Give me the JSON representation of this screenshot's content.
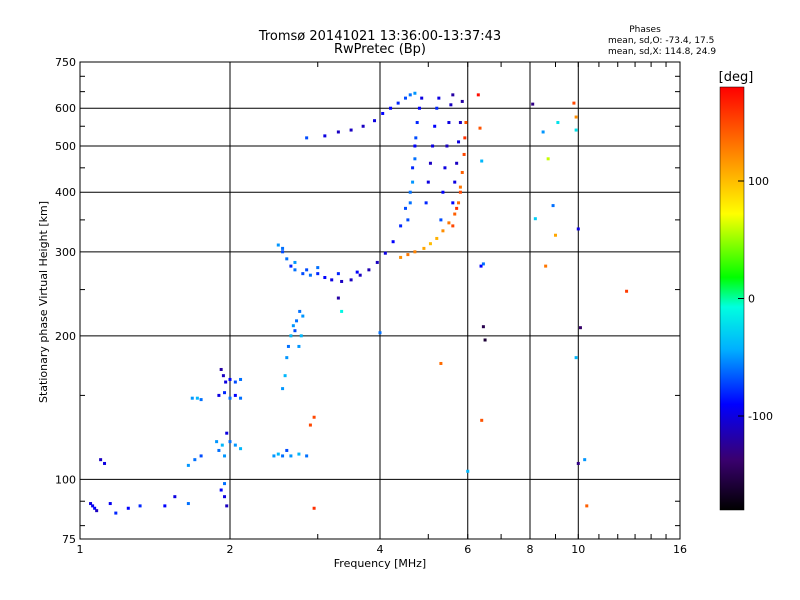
{
  "chart_data": {
    "type": "scatter",
    "title": "Tromsø 20141021 13:36:00-13:37:43",
    "subtitle": "RwPretec (Bp)",
    "xlabel": "Frequency [MHz]",
    "ylabel": "Stationary phase Virtual Height [km]",
    "x_scale": "log",
    "y_scale": "log",
    "xlim": [
      1,
      16
    ],
    "ylim": [
      75,
      750
    ],
    "x_ticks": [
      1,
      2,
      4,
      6,
      8,
      10,
      16
    ],
    "y_ticks": [
      75,
      100,
      200,
      300,
      400,
      500,
      600,
      750
    ],
    "x_gridlines": [
      2,
      4,
      6,
      8,
      10
    ],
    "y_gridlines": [
      100,
      200,
      300,
      400,
      500,
      600
    ],
    "grid": true,
    "legend": {
      "title": "Phases",
      "line1": "mean, sd,O: -73.4, 17.5",
      "line2": "mean, sd,X: 114.8, 24.9"
    },
    "colorbar": {
      "label": "[deg]",
      "ticks": [
        100,
        0,
        -100
      ],
      "range": [
        -180,
        180
      ],
      "colors": [
        "#000000",
        "#3a0070",
        "#0000ff",
        "#00b0ff",
        "#00ffe0",
        "#00ff00",
        "#ffff00",
        "#ff8000",
        "#ff0000"
      ]
    },
    "color_encoding": "phase (deg)",
    "series": [
      {
        "points": [
          [
            1.05,
            89,
            -100
          ],
          [
            1.06,
            88,
            -95
          ],
          [
            1.07,
            87,
            -90
          ],
          [
            1.08,
            86,
            -110
          ],
          [
            1.1,
            110,
            -110
          ],
          [
            1.12,
            108,
            -100
          ],
          [
            1.15,
            89,
            -95
          ],
          [
            1.18,
            85,
            -80
          ],
          [
            1.25,
            87,
            -90
          ],
          [
            1.32,
            88,
            -80
          ],
          [
            1.48,
            88,
            -90
          ],
          [
            1.55,
            92,
            -100
          ],
          [
            1.65,
            89,
            -60
          ],
          [
            1.68,
            148,
            -50
          ],
          [
            1.72,
            148,
            -40
          ],
          [
            1.75,
            147,
            -60
          ],
          [
            1.65,
            107,
            -50
          ],
          [
            1.7,
            110,
            -60
          ],
          [
            1.75,
            112,
            -70
          ]
        ]
      },
      {
        "points": [
          [
            1.88,
            120,
            -50
          ],
          [
            1.9,
            115,
            -60
          ],
          [
            1.93,
            118,
            -40
          ],
          [
            1.95,
            112,
            -50
          ],
          [
            1.97,
            125,
            -100
          ],
          [
            2.0,
            120,
            -60
          ],
          [
            2.05,
            118,
            -50
          ],
          [
            2.1,
            116,
            -40
          ],
          [
            1.9,
            150,
            -100
          ],
          [
            1.95,
            152,
            -80
          ],
          [
            2.0,
            148,
            -60
          ],
          [
            2.05,
            150,
            -90
          ],
          [
            2.1,
            148,
            -60
          ],
          [
            1.92,
            170,
            -120
          ],
          [
            1.94,
            165,
            -110
          ],
          [
            1.96,
            160,
            -100
          ],
          [
            2.0,
            162,
            -90
          ],
          [
            2.05,
            160,
            -70
          ],
          [
            2.1,
            162,
            -60
          ],
          [
            1.92,
            95,
            -90
          ],
          [
            1.95,
            92,
            -100
          ],
          [
            1.97,
            88,
            -110
          ],
          [
            1.95,
            98,
            -60
          ]
        ]
      },
      {
        "points": [
          [
            2.45,
            112,
            -50
          ],
          [
            2.5,
            113,
            -40
          ],
          [
            2.55,
            112,
            -60
          ],
          [
            2.6,
            115,
            -70
          ],
          [
            2.65,
            112,
            -50
          ],
          [
            2.75,
            113,
            -40
          ],
          [
            2.85,
            112,
            -60
          ],
          [
            2.55,
            155,
            -50
          ],
          [
            2.58,
            165,
            -40
          ],
          [
            2.6,
            180,
            -50
          ],
          [
            2.62,
            190,
            -60
          ],
          [
            2.65,
            200,
            -40
          ],
          [
            2.68,
            210,
            -50
          ],
          [
            2.7,
            205,
            -70
          ],
          [
            2.72,
            215,
            -60
          ],
          [
            2.75,
            190,
            -50
          ],
          [
            2.78,
            200,
            -40
          ],
          [
            2.8,
            220,
            -50
          ],
          [
            2.76,
            225,
            -60
          ]
        ]
      },
      {
        "points": [
          [
            2.5,
            310,
            -50
          ],
          [
            2.55,
            300,
            -70
          ],
          [
            2.6,
            290,
            -60
          ],
          [
            2.65,
            280,
            -80
          ],
          [
            2.7,
            275,
            -60
          ],
          [
            2.8,
            270,
            -70
          ],
          [
            2.9,
            268,
            -60
          ],
          [
            3.0,
            270,
            -80
          ],
          [
            3.1,
            265,
            -90
          ],
          [
            3.2,
            262,
            -100
          ],
          [
            3.35,
            260,
            -110
          ],
          [
            3.5,
            262,
            -110
          ],
          [
            3.65,
            268,
            -110
          ],
          [
            3.8,
            275,
            -115
          ],
          [
            3.95,
            285,
            -110
          ],
          [
            4.1,
            298,
            -100
          ],
          [
            4.25,
            315,
            -90
          ],
          [
            4.4,
            340,
            -80
          ],
          [
            4.5,
            370,
            -70
          ],
          [
            2.55,
            305,
            -60
          ],
          [
            2.7,
            285,
            -50
          ],
          [
            2.85,
            275,
            -70
          ],
          [
            3.0,
            278,
            -60
          ],
          [
            3.3,
            270,
            -80
          ],
          [
            3.6,
            272,
            -90
          ]
        ]
      },
      {
        "points": [
          [
            2.85,
            520,
            -70
          ],
          [
            3.1,
            525,
            -100
          ],
          [
            3.3,
            535,
            -110
          ],
          [
            3.5,
            540,
            -110
          ],
          [
            3.7,
            550,
            -110
          ],
          [
            3.9,
            565,
            -100
          ],
          [
            4.05,
            585,
            -90
          ],
          [
            4.2,
            600,
            -90
          ],
          [
            4.35,
            615,
            -80
          ],
          [
            4.5,
            630,
            -70
          ],
          [
            4.6,
            640,
            -60
          ],
          [
            4.7,
            645,
            -50
          ]
        ]
      },
      {
        "points": [
          [
            4.6,
            380,
            -60
          ],
          [
            4.65,
            420,
            -50
          ],
          [
            4.7,
            470,
            -60
          ],
          [
            4.72,
            520,
            -70
          ],
          [
            4.75,
            560,
            -80
          ],
          [
            4.8,
            600,
            -90
          ],
          [
            4.85,
            630,
            -100
          ],
          [
            4.55,
            350,
            -70
          ],
          [
            4.6,
            400,
            -60
          ],
          [
            4.65,
            450,
            -80
          ],
          [
            4.7,
            500,
            -90
          ],
          [
            4.95,
            380,
            -80
          ],
          [
            5.0,
            420,
            -100
          ],
          [
            5.05,
            460,
            -110
          ],
          [
            5.1,
            500,
            -100
          ],
          [
            5.15,
            550,
            -90
          ],
          [
            5.2,
            600,
            -80
          ],
          [
            5.25,
            630,
            -100
          ],
          [
            5.3,
            350,
            -70
          ],
          [
            5.35,
            400,
            -90
          ],
          [
            5.4,
            450,
            -100
          ],
          [
            5.45,
            500,
            -110
          ],
          [
            5.5,
            560,
            -100
          ],
          [
            5.55,
            610,
            -110
          ],
          [
            5.6,
            640,
            -120
          ],
          [
            5.6,
            380,
            -90
          ],
          [
            5.65,
            420,
            -100
          ],
          [
            5.7,
            460,
            -110
          ],
          [
            5.75,
            510,
            -100
          ],
          [
            5.8,
            560,
            -110
          ],
          [
            5.85,
            620,
            -120
          ]
        ]
      },
      {
        "points": [
          [
            4.4,
            292,
            120
          ],
          [
            4.55,
            296,
            130
          ],
          [
            4.7,
            300,
            125
          ],
          [
            4.9,
            305,
            110
          ],
          [
            5.05,
            312,
            100
          ],
          [
            5.2,
            320,
            105
          ],
          [
            5.35,
            332,
            120
          ],
          [
            5.5,
            345,
            130
          ],
          [
            5.65,
            360,
            140
          ],
          [
            5.75,
            380,
            135
          ],
          [
            5.8,
            410,
            130
          ],
          [
            5.85,
            440,
            140
          ],
          [
            5.9,
            480,
            150
          ],
          [
            5.92,
            520,
            160
          ],
          [
            5.95,
            560,
            145
          ],
          [
            5.6,
            340,
            150
          ],
          [
            5.7,
            370,
            160
          ],
          [
            5.8,
            400,
            150
          ]
        ]
      },
      {
        "points": [
          [
            6.3,
            640,
            175
          ],
          [
            6.35,
            545,
            145
          ],
          [
            6.4,
            465,
            -40
          ],
          [
            6.45,
            283,
            -60
          ],
          [
            6.38,
            280,
            -90
          ],
          [
            6.45,
            209,
            -150
          ],
          [
            6.5,
            196,
            -160
          ],
          [
            6.4,
            133,
            145
          ],
          [
            6.0,
            104,
            -40
          ],
          [
            5.3,
            175,
            135
          ],
          [
            4.0,
            203,
            -60
          ],
          [
            3.35,
            225,
            -10
          ],
          [
            3.3,
            240,
            -120
          ],
          [
            2.95,
            135,
            150
          ],
          [
            2.95,
            87,
            160
          ],
          [
            2.9,
            130,
            150
          ]
        ]
      },
      {
        "points": [
          [
            8.1,
            612,
            -130
          ],
          [
            8.2,
            352,
            -30
          ],
          [
            8.5,
            535,
            -50
          ],
          [
            8.7,
            470,
            60
          ],
          [
            8.9,
            375,
            -60
          ],
          [
            9.0,
            325,
            110
          ],
          [
            9.1,
            560,
            -20
          ],
          [
            8.6,
            280,
            130
          ],
          [
            9.8,
            615,
            150
          ],
          [
            9.9,
            575,
            120
          ],
          [
            10.0,
            335,
            -100
          ],
          [
            10.1,
            208,
            -140
          ],
          [
            10.0,
            108,
            -130
          ],
          [
            10.3,
            110,
            -50
          ],
          [
            10.4,
            88,
            140
          ],
          [
            9.9,
            180,
            -40
          ],
          [
            12.5,
            248,
            155
          ],
          [
            9.9,
            540,
            -20
          ]
        ]
      }
    ]
  }
}
